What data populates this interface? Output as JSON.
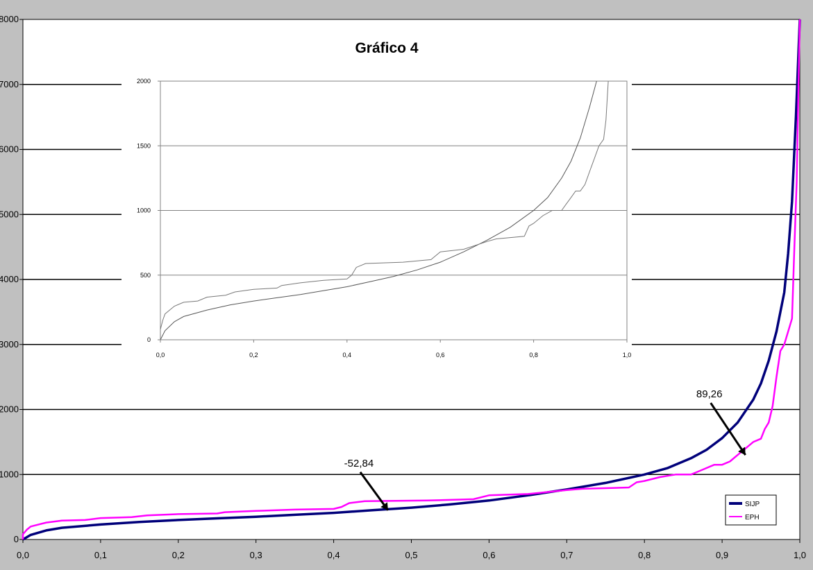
{
  "chart_data": [
    {
      "id": "main",
      "type": "line",
      "title": "Gráfico 4",
      "xlim": [
        0,
        1
      ],
      "ylim": [
        0,
        8000
      ],
      "x_ticks": [
        "0,0",
        "0,1",
        "0,2",
        "0,3",
        "0,4",
        "0,5",
        "0,6",
        "0,7",
        "0,8",
        "0,9",
        "1,0"
      ],
      "y_ticks": [
        "0",
        "1000",
        "2000",
        "3000",
        "4000",
        "5000",
        "6000",
        "7000",
        "8000"
      ],
      "grid": "horizontal",
      "legend_position": "bottom-right",
      "series": [
        {
          "name": "SIJP",
          "color": "#00007a",
          "points": [
            [
              0,
              0
            ],
            [
              0.01,
              70
            ],
            [
              0.03,
              140
            ],
            [
              0.05,
              180
            ],
            [
              0.1,
              230
            ],
            [
              0.15,
              270
            ],
            [
              0.2,
              300
            ],
            [
              0.25,
              325
            ],
            [
              0.3,
              350
            ],
            [
              0.35,
              380
            ],
            [
              0.4,
              410
            ],
            [
              0.45,
              450
            ],
            [
              0.5,
              490
            ],
            [
              0.55,
              540
            ],
            [
              0.6,
              600
            ],
            [
              0.65,
              680
            ],
            [
              0.7,
              770
            ],
            [
              0.75,
              870
            ],
            [
              0.8,
              1000
            ],
            [
              0.83,
              1100
            ],
            [
              0.86,
              1250
            ],
            [
              0.88,
              1380
            ],
            [
              0.9,
              1560
            ],
            [
              0.92,
              1800
            ],
            [
              0.94,
              2150
            ],
            [
              0.95,
              2400
            ],
            [
              0.96,
              2750
            ],
            [
              0.97,
              3200
            ],
            [
              0.98,
              3800
            ],
            [
              0.985,
              4400
            ],
            [
              0.99,
              5200
            ],
            [
              0.995,
              6500
            ],
            [
              1.0,
              8000
            ]
          ]
        },
        {
          "name": "EPH",
          "color": "#ff00ff",
          "points": [
            [
              0,
              0
            ],
            [
              0,
              80
            ],
            [
              0.005,
              150
            ],
            [
              0.01,
              200
            ],
            [
              0.02,
              230
            ],
            [
              0.03,
              260
            ],
            [
              0.05,
              290
            ],
            [
              0.08,
              300
            ],
            [
              0.1,
              330
            ],
            [
              0.14,
              345
            ],
            [
              0.16,
              370
            ],
            [
              0.2,
              390
            ],
            [
              0.25,
              400
            ],
            [
              0.26,
              420
            ],
            [
              0.3,
              440
            ],
            [
              0.35,
              460
            ],
            [
              0.4,
              470
            ],
            [
              0.41,
              500
            ],
            [
              0.42,
              560
            ],
            [
              0.44,
              590
            ],
            [
              0.52,
              600
            ],
            [
              0.58,
              620
            ],
            [
              0.6,
              680
            ],
            [
              0.65,
              700
            ],
            [
              0.7,
              760
            ],
            [
              0.72,
              780
            ],
            [
              0.78,
              800
            ],
            [
              0.79,
              880
            ],
            [
              0.8,
              900
            ],
            [
              0.82,
              960
            ],
            [
              0.84,
              1000
            ],
            [
              0.86,
              1000
            ],
            [
              0.87,
              1050
            ],
            [
              0.88,
              1100
            ],
            [
              0.89,
              1150
            ],
            [
              0.9,
              1150
            ],
            [
              0.91,
              1200
            ],
            [
              0.92,
              1300
            ],
            [
              0.925,
              1350
            ],
            [
              0.93,
              1400
            ],
            [
              0.94,
              1500
            ],
            [
              0.95,
              1550
            ],
            [
              0.955,
              1700
            ],
            [
              0.96,
              1800
            ],
            [
              0.965,
              2050
            ],
            [
              0.97,
              2500
            ],
            [
              0.975,
              2900
            ],
            [
              0.98,
              3000
            ],
            [
              0.99,
              3400
            ],
            [
              0.993,
              4500
            ],
            [
              0.996,
              5500
            ],
            [
              0.998,
              6800
            ],
            [
              1.0,
              8000
            ]
          ]
        }
      ],
      "annotations": [
        {
          "label": "89,26",
          "x": 0.93,
          "y": 1300
        },
        {
          "label": "-52,84",
          "x": 0.47,
          "y": 450
        }
      ]
    },
    {
      "id": "inset",
      "type": "line",
      "xlim": [
        0,
        1
      ],
      "ylim": [
        0,
        2000
      ],
      "x_ticks": [
        "0,0",
        "0,2",
        "0,4",
        "0,6",
        "0,8",
        "1,0"
      ],
      "y_ticks": [
        "0",
        "500",
        "1000",
        "1500",
        "2000"
      ],
      "grid": "horizontal",
      "series": [
        {
          "name": "SIJP",
          "color": "#555555",
          "points": [
            [
              0,
              0
            ],
            [
              0.01,
              70
            ],
            [
              0.03,
              140
            ],
            [
              0.05,
              180
            ],
            [
              0.1,
              230
            ],
            [
              0.15,
              270
            ],
            [
              0.2,
              300
            ],
            [
              0.25,
              325
            ],
            [
              0.3,
              350
            ],
            [
              0.35,
              380
            ],
            [
              0.4,
              410
            ],
            [
              0.45,
              450
            ],
            [
              0.5,
              490
            ],
            [
              0.55,
              540
            ],
            [
              0.6,
              600
            ],
            [
              0.65,
              680
            ],
            [
              0.7,
              770
            ],
            [
              0.75,
              870
            ],
            [
              0.8,
              1000
            ],
            [
              0.83,
              1100
            ],
            [
              0.86,
              1250
            ],
            [
              0.88,
              1380
            ],
            [
              0.9,
              1560
            ],
            [
              0.92,
              1800
            ],
            [
              0.935,
              2000
            ]
          ]
        },
        {
          "name": "EPH",
          "color": "#777777",
          "points": [
            [
              0,
              0
            ],
            [
              0,
              80
            ],
            [
              0.005,
              150
            ],
            [
              0.01,
              200
            ],
            [
              0.02,
              230
            ],
            [
              0.03,
              260
            ],
            [
              0.05,
              290
            ],
            [
              0.08,
              300
            ],
            [
              0.1,
              330
            ],
            [
              0.14,
              345
            ],
            [
              0.16,
              370
            ],
            [
              0.2,
              390
            ],
            [
              0.25,
              400
            ],
            [
              0.26,
              420
            ],
            [
              0.3,
              440
            ],
            [
              0.35,
              460
            ],
            [
              0.4,
              470
            ],
            [
              0.41,
              500
            ],
            [
              0.42,
              560
            ],
            [
              0.44,
              590
            ],
            [
              0.52,
              600
            ],
            [
              0.58,
              620
            ],
            [
              0.6,
              680
            ],
            [
              0.65,
              700
            ],
            [
              0.7,
              760
            ],
            [
              0.72,
              780
            ],
            [
              0.78,
              800
            ],
            [
              0.79,
              880
            ],
            [
              0.8,
              900
            ],
            [
              0.82,
              960
            ],
            [
              0.84,
              1000
            ],
            [
              0.86,
              1000
            ],
            [
              0.87,
              1050
            ],
            [
              0.88,
              1100
            ],
            [
              0.89,
              1150
            ],
            [
              0.9,
              1150
            ],
            [
              0.91,
              1200
            ],
            [
              0.92,
              1300
            ],
            [
              0.925,
              1350
            ],
            [
              0.93,
              1400
            ],
            [
              0.94,
              1500
            ],
            [
              0.95,
              1550
            ],
            [
              0.955,
              1700
            ],
            [
              0.96,
              2000
            ]
          ]
        }
      ]
    }
  ]
}
